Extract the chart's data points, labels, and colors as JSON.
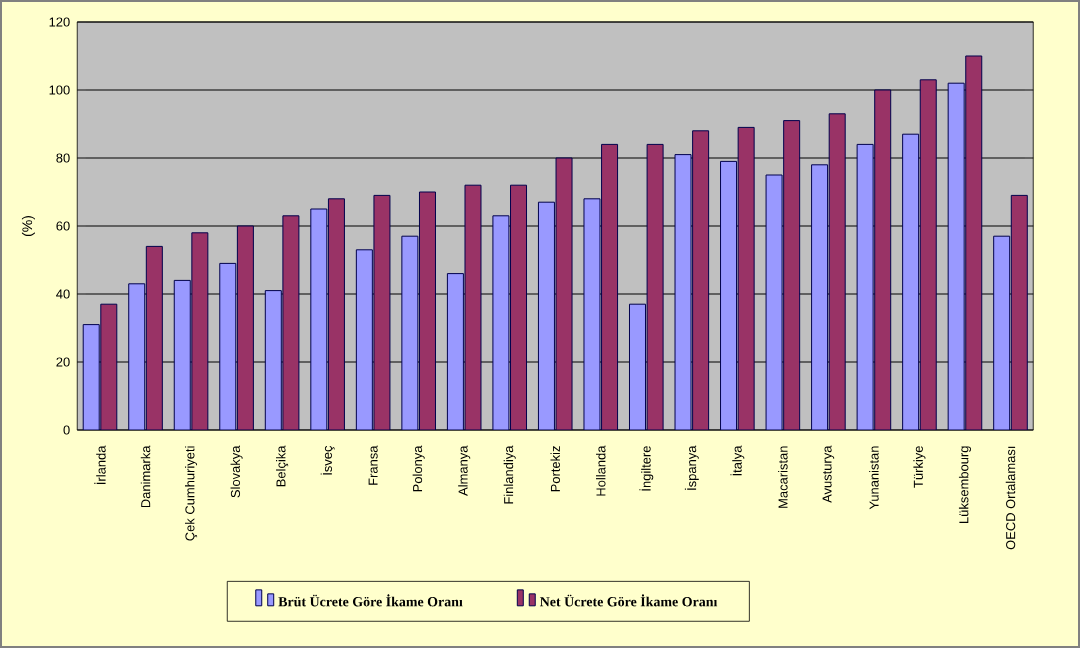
{
  "chart_data": {
    "type": "bar",
    "ylabel": "(%)",
    "categories": [
      "İrlanda",
      "Danimarka",
      "Çek Cumhuriyeti",
      "Slovakya",
      "Belçika",
      "İsveç",
      "Fransa",
      "Polonya",
      "Almanya",
      "Finlandiya",
      "Portekiz",
      "Hollanda",
      "İngiltere",
      "İspanya",
      "İtalya",
      "Macaristan",
      "Avusturya",
      "Yunanistan",
      "Türkiye",
      "Lüksembourg",
      "OECD Ortalaması"
    ],
    "series": [
      {
        "name": "Brüt Ücrete Göre İkame Oranı",
        "color": "#9999ff",
        "values": [
          31,
          43,
          44,
          49,
          41,
          65,
          53,
          57,
          46,
          63,
          67,
          68,
          37,
          81,
          79,
          75,
          78,
          84,
          87,
          102,
          57
        ]
      },
      {
        "name": "Net Ücrete Göre İkame Oranı",
        "color": "#993366",
        "values": [
          37,
          54,
          58,
          60,
          63,
          68,
          69,
          70,
          72,
          72,
          80,
          84,
          84,
          88,
          89,
          91,
          93,
          100,
          103,
          110,
          69
        ]
      }
    ],
    "ylim": [
      0,
      120
    ],
    "yticks": [
      0,
      20,
      40,
      60,
      80,
      100,
      120
    ],
    "grid": "y",
    "legend": "bottom"
  }
}
